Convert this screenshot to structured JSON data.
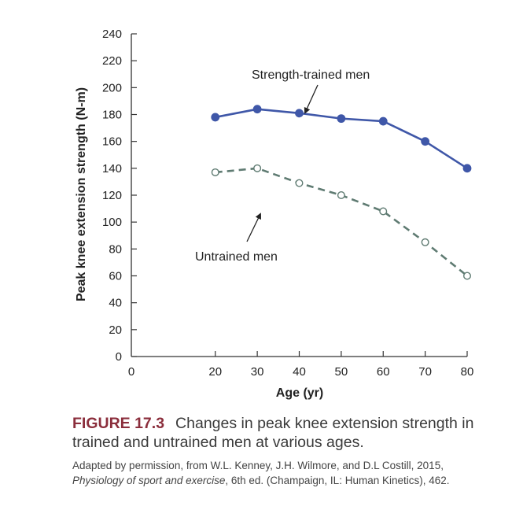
{
  "chart_data": {
    "type": "line",
    "title": "",
    "xlabel": "Age (yr)",
    "ylabel": "Peak knee extension strength (N-m)",
    "xlim": [
      0,
      80
    ],
    "ylim": [
      0,
      240
    ],
    "x_ticks": [
      0,
      20,
      30,
      40,
      50,
      60,
      70,
      80
    ],
    "y_ticks": [
      0,
      20,
      40,
      60,
      80,
      100,
      120,
      140,
      160,
      180,
      200,
      220,
      240
    ],
    "grid": false,
    "series": [
      {
        "name": "Strength-trained men",
        "color": "#3f57a8",
        "line_style": "solid",
        "marker": "filled-circle",
        "x": [
          20,
          30,
          40,
          50,
          60,
          70,
          80
        ],
        "values": [
          178,
          184,
          181,
          177,
          175,
          160,
          140
        ]
      },
      {
        "name": "Untrained men",
        "color": "#5f7b72",
        "line_style": "dashed",
        "marker": "open-circle",
        "x": [
          20,
          30,
          40,
          50,
          60,
          70,
          80
        ],
        "values": [
          137,
          140,
          129,
          120,
          108,
          85,
          60
        ]
      }
    ],
    "annotations": [
      {
        "text": "Strength-trained men",
        "series": 0
      },
      {
        "text": "Untrained men",
        "series": 1
      }
    ]
  },
  "caption": {
    "figure_label": "FIGURE 17.3",
    "text": "Changes in peak knee extension strength in trained and untrained men at various ages."
  },
  "credit": {
    "prefix": "Adapted by permission, from W.L. Kenney, J.H. Wilmore, and D.L Costill, 2015, ",
    "title": "Physiology of sport and exercise",
    "suffix": ", 6th ed. (Champaign, IL: Human Kinetics), 462."
  }
}
